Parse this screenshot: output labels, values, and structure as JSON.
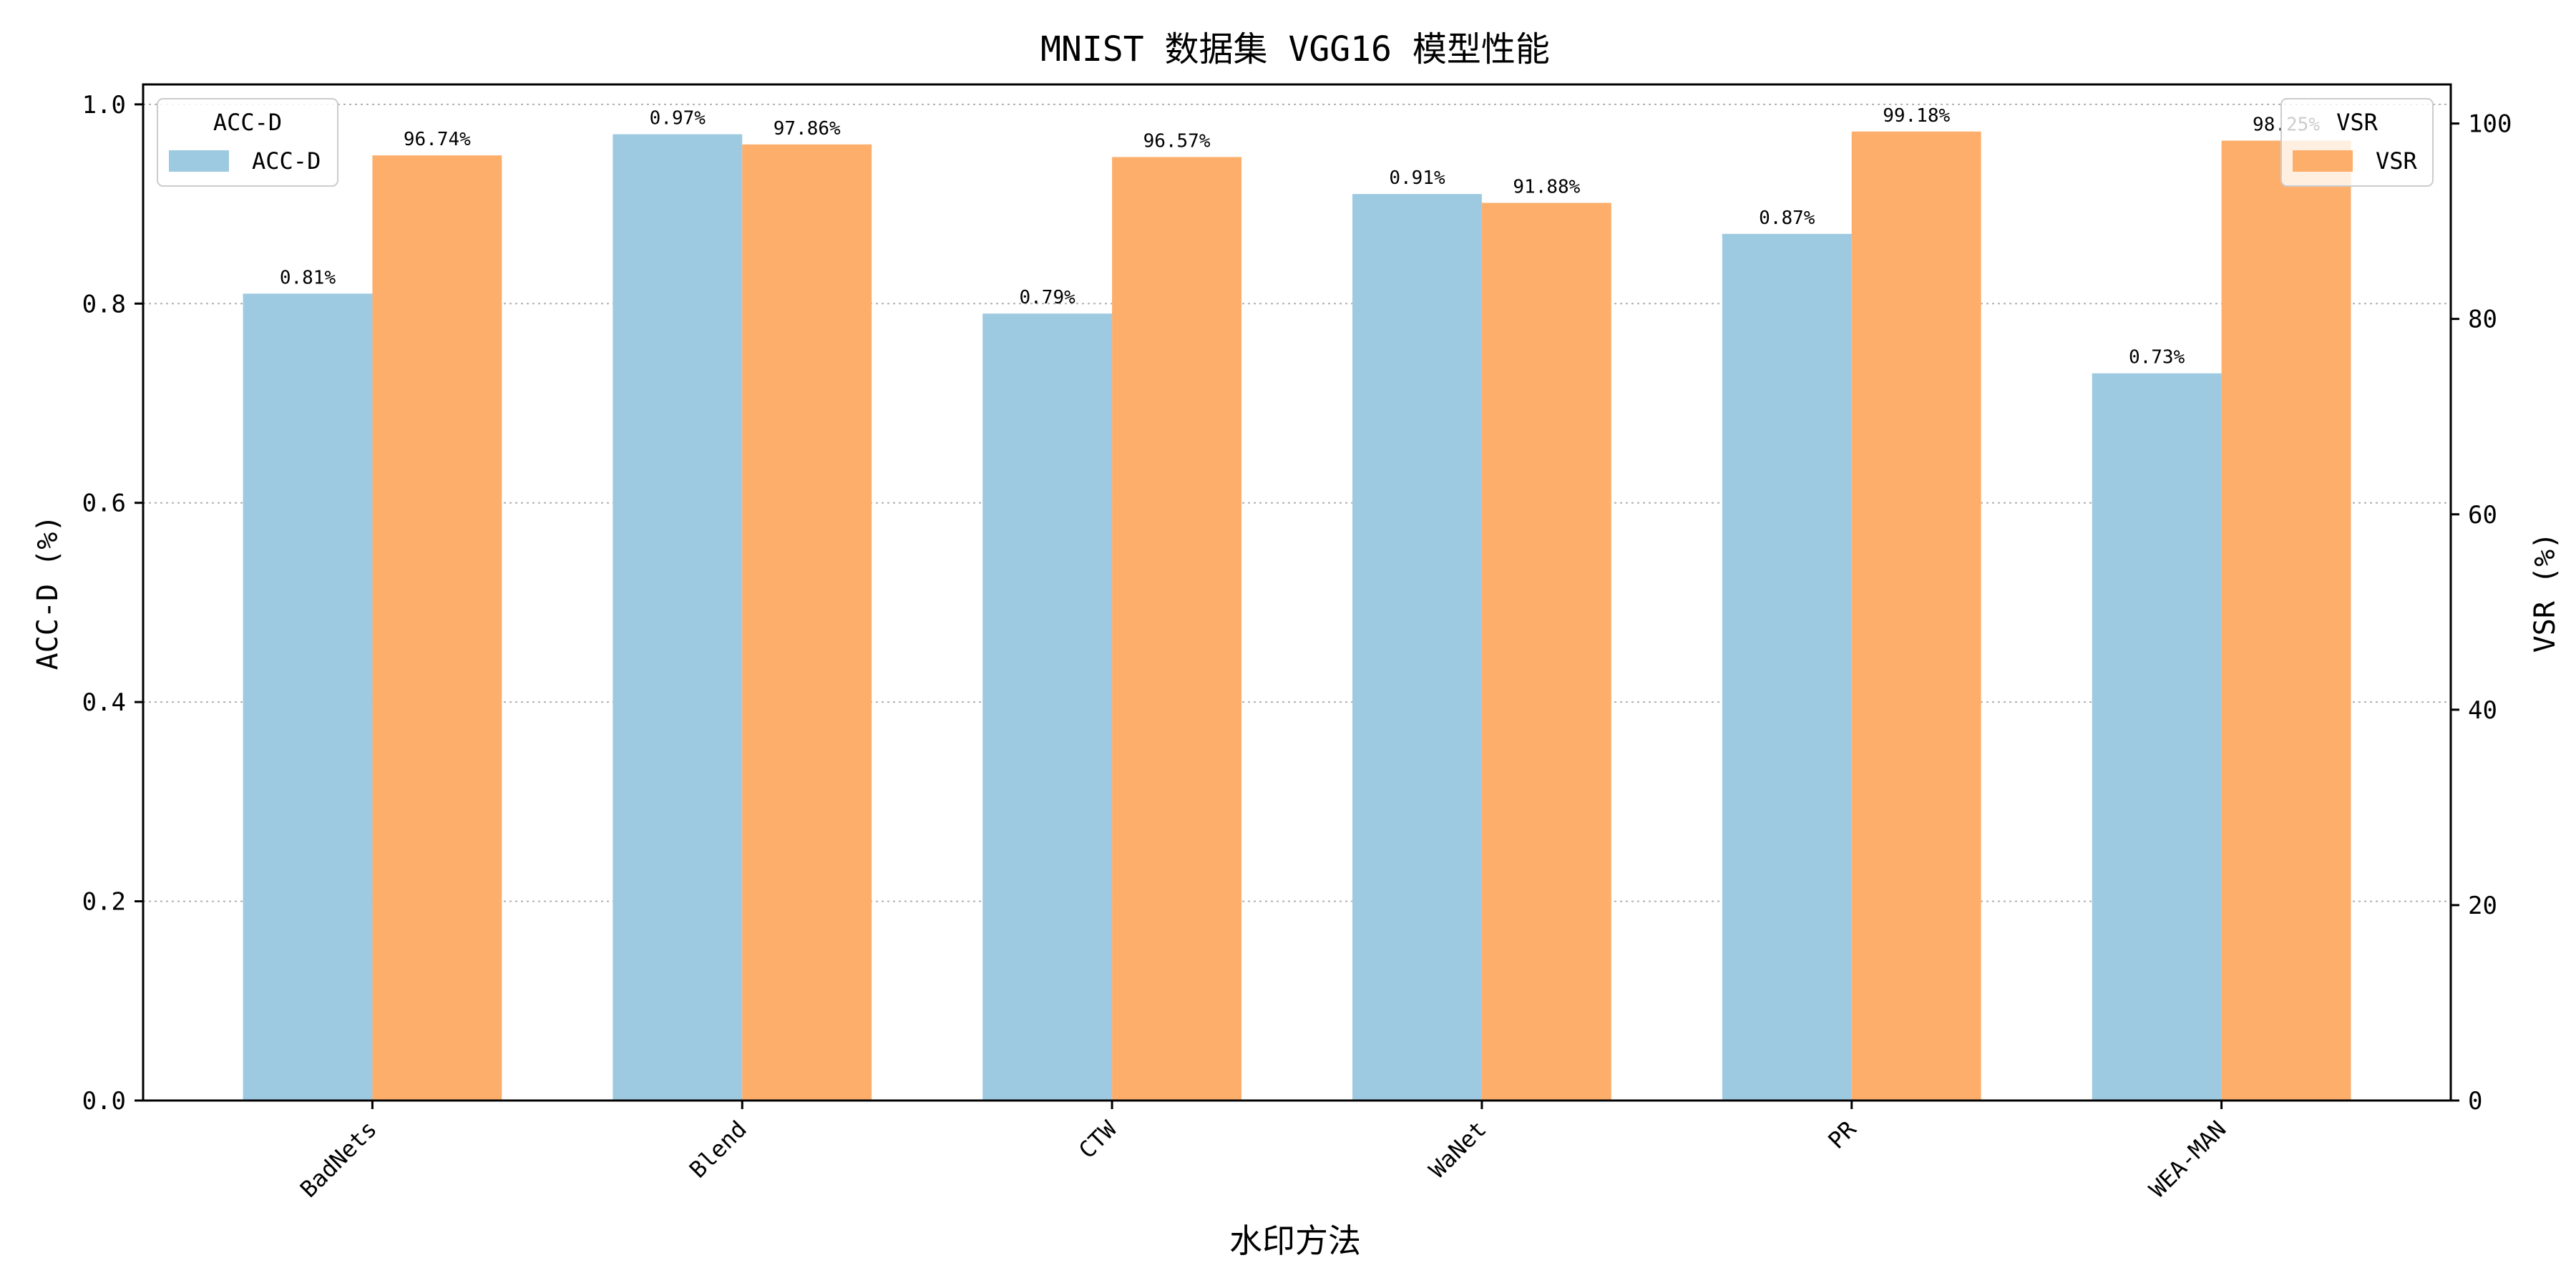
{
  "chart_data": {
    "type": "bar",
    "title": "MNIST 数据集 VGG16 模型性能",
    "xlabel": "水印方法",
    "ylabel_left": "ACC-D (%)",
    "ylabel_right": "VSR (%)",
    "categories": [
      "BadNets",
      "Blend",
      "CTW",
      "WaNet",
      "PR",
      "WEA-MAN"
    ],
    "series": [
      {
        "name": "ACC-D",
        "axis": "left",
        "color": "#9ecae1",
        "values": [
          0.81,
          0.97,
          0.79,
          0.91,
          0.87,
          0.73
        ],
        "labels": [
          "0.81%",
          "0.97%",
          "0.79%",
          "0.91%",
          "0.87%",
          "0.73%"
        ]
      },
      {
        "name": "VSR",
        "axis": "right",
        "color": "#fdae6b",
        "values": [
          96.74,
          97.86,
          96.57,
          91.88,
          99.18,
          98.25
        ],
        "labels": [
          "96.74%",
          "97.86%",
          "96.57%",
          "91.88%",
          "99.18%",
          "98.25%"
        ]
      }
    ],
    "ylim_left": [
      0,
      1.02
    ],
    "ylim_right": [
      0,
      104
    ],
    "yticks_left": [
      "0.0",
      "0.2",
      "0.4",
      "0.6",
      "0.8",
      "1.0"
    ],
    "ytick_values_left": [
      0,
      0.2,
      0.4,
      0.6,
      0.8,
      1.0
    ],
    "yticks_right": [
      "0",
      "20",
      "40",
      "60",
      "80",
      "100"
    ],
    "ytick_values_right": [
      0,
      20,
      40,
      60,
      80,
      100
    ],
    "grid": "y-dotted",
    "legends": [
      {
        "title": "ACC-D",
        "entry": "ACC-D",
        "placement": "top-left"
      },
      {
        "title": "VSR",
        "entry": "VSR",
        "placement": "top-right"
      }
    ]
  }
}
